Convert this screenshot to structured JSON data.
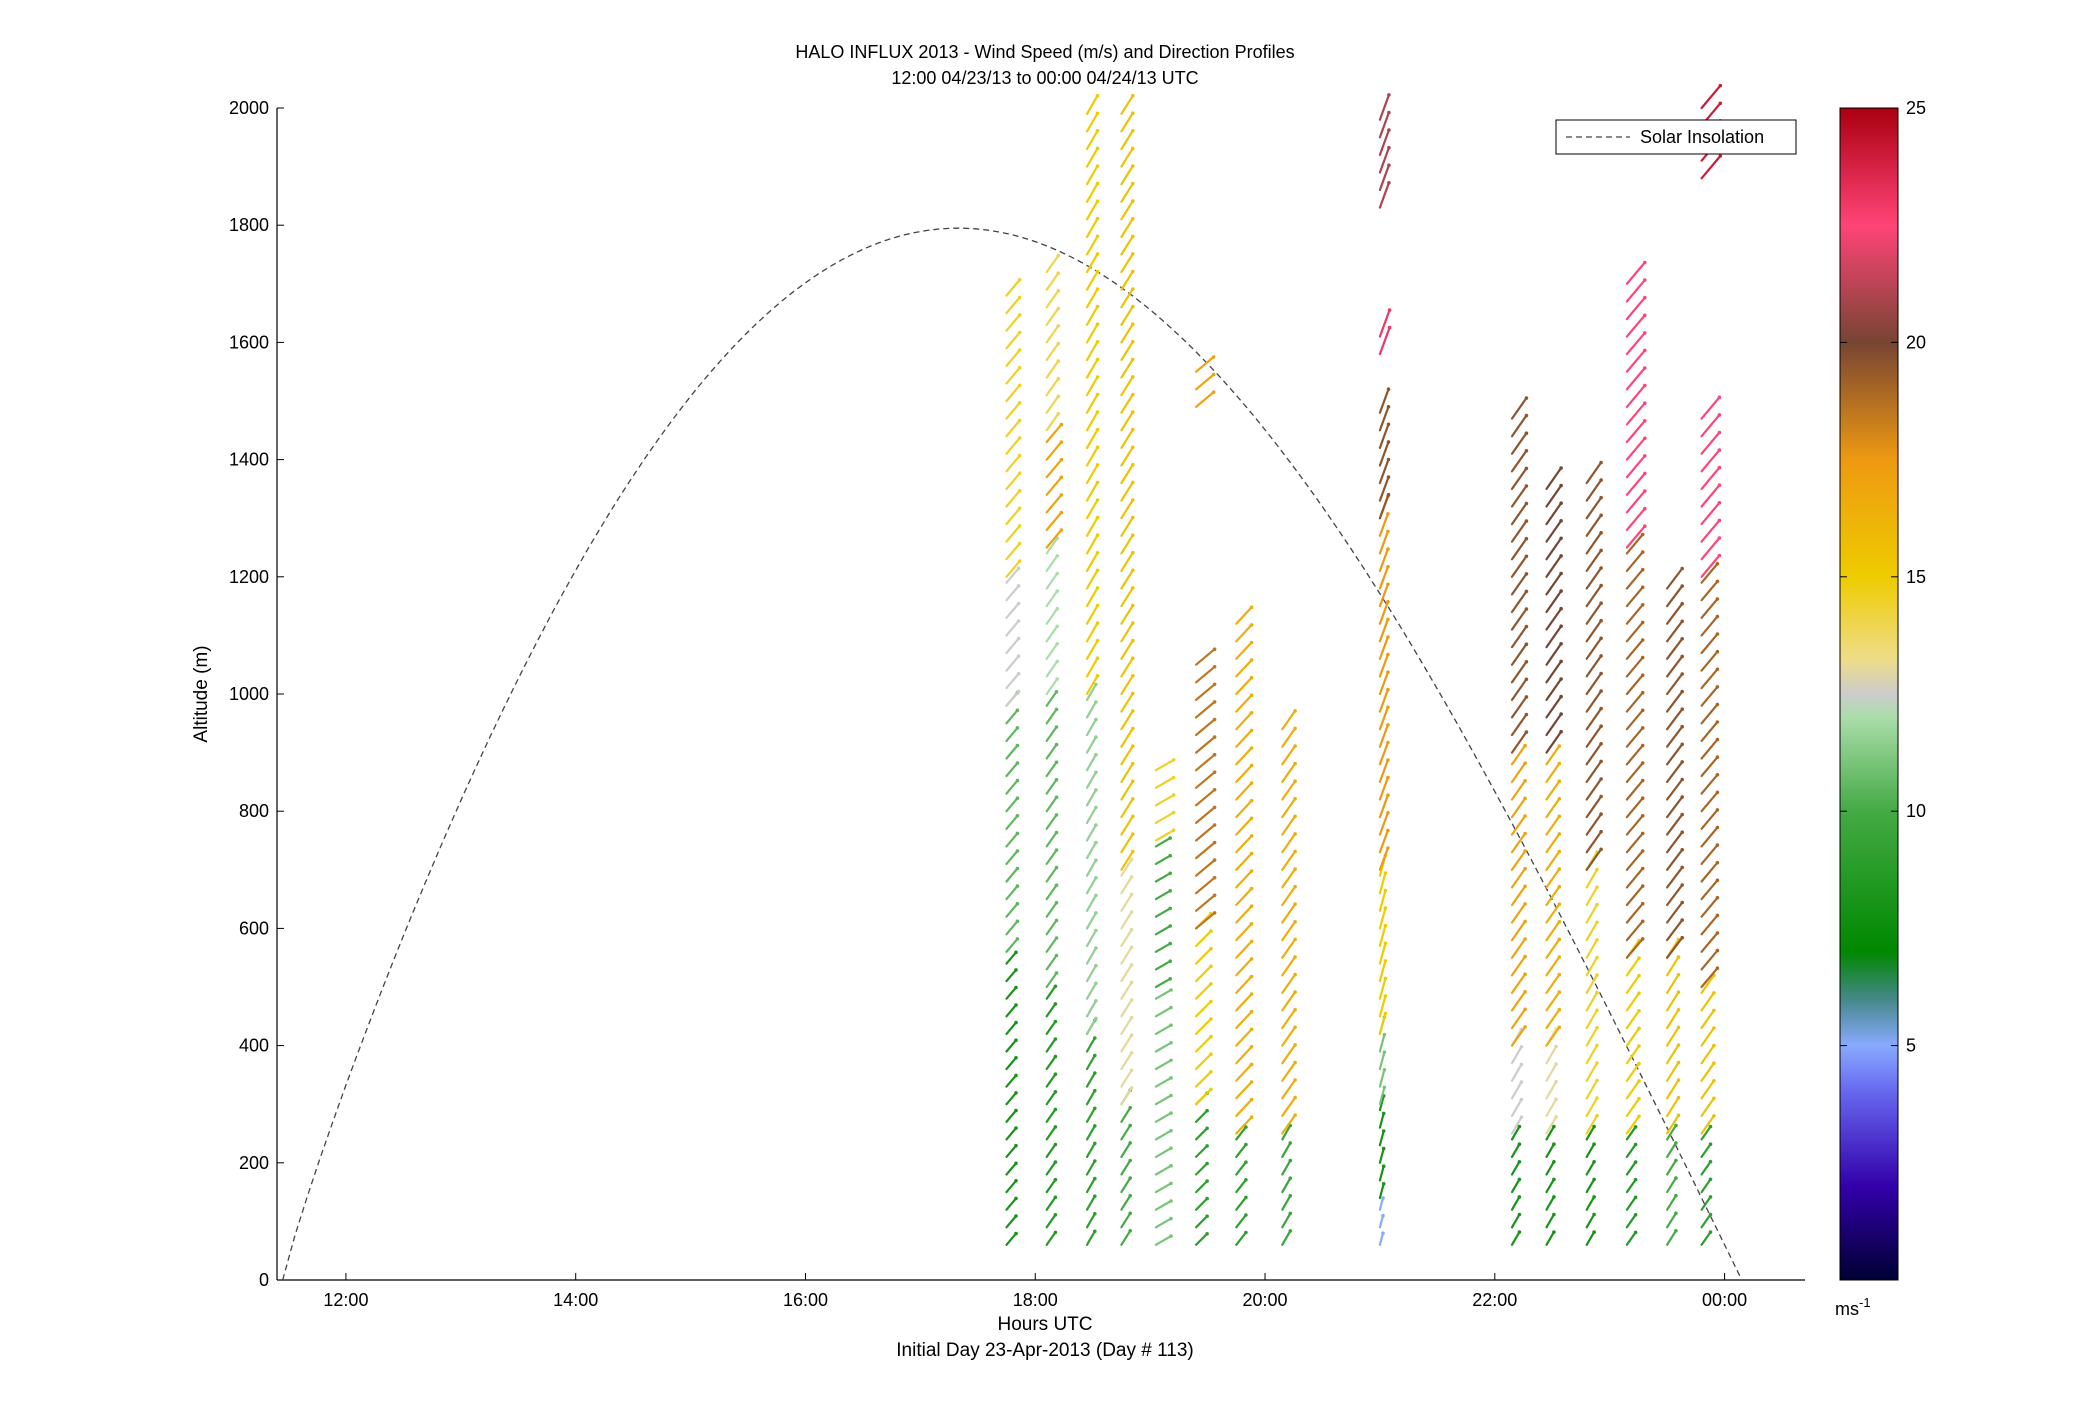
{
  "chart_data": {
    "type": "quiver",
    "title": "HALO INFLUX 2013 - Wind Speed (m/s) and Direction Profiles",
    "subtitle": "12:00 04/23/13 to 00:00 04/24/13  UTC",
    "xlabel": "Hours UTC",
    "xlabel2": "Initial Day 23-Apr-2013 (Day # 113)",
    "ylabel": "Altitude (m)",
    "x_ticks": [
      "12:00",
      "14:00",
      "16:00",
      "18:00",
      "20:00",
      "22:00",
      "00:00"
    ],
    "x_tick_hours": [
      12,
      14,
      16,
      18,
      20,
      22,
      24
    ],
    "xlim": [
      11.4,
      24.7
    ],
    "y_ticks": [
      "0",
      "200",
      "400",
      "600",
      "800",
      "1000",
      "1200",
      "1400",
      "1600",
      "1800",
      "2000"
    ],
    "ylim": [
      0,
      2000
    ],
    "colorbar": {
      "ticks": [
        "5",
        "10",
        "15",
        "20",
        "25"
      ],
      "tick_values": [
        5,
        10,
        15,
        20,
        25
      ],
      "range": [
        0,
        25
      ],
      "unit_label": "ms",
      "unit_exponent": "-1"
    },
    "legend": {
      "entries": [
        "Solar Insolation"
      ],
      "position": "top-right"
    },
    "solar_insolation": {
      "peak_hour": 17.8,
      "peak_altitude": 1795,
      "zero_start_hour": 11.45,
      "zero_end_hour": 24.15
    },
    "profiles": [
      {
        "hour": 17.75,
        "alt_min": 60,
        "alt_max": 1700,
        "segments": [
          [
            60,
            560,
            8
          ],
          [
            560,
            980,
            10.5
          ],
          [
            980,
            1200,
            12.5
          ],
          [
            1200,
            1700,
            14.5
          ]
        ],
        "dir": 40
      },
      {
        "hour": 18.1,
        "alt_min": 60,
        "alt_max": 1720,
        "segments": [
          [
            60,
            500,
            8.5
          ],
          [
            500,
            1000,
            10.5
          ],
          [
            1000,
            1250,
            12
          ],
          [
            1250,
            1450,
            17
          ],
          [
            1450,
            1720,
            14
          ]
        ],
        "dir": 35
      },
      {
        "hour": 18.45,
        "alt_min": 60,
        "alt_max": 2000,
        "segments": [
          [
            60,
            420,
            9
          ],
          [
            420,
            1000,
            11.5
          ],
          [
            1000,
            2000,
            15
          ]
        ],
        "dir": 30
      },
      {
        "hour": 18.75,
        "alt_min": 60,
        "alt_max": 2000,
        "segments": [
          [
            60,
            300,
            10
          ],
          [
            300,
            700,
            13
          ],
          [
            700,
            2000,
            15.5
          ]
        ],
        "dir": 32
      },
      {
        "hour": 19.05,
        "alt_min": 60,
        "alt_max": 880,
        "segments": [
          [
            60,
            500,
            11
          ],
          [
            500,
            750,
            10
          ],
          [
            750,
            880,
            14.5
          ]
        ],
        "dir": 60
      },
      {
        "hour": 19.4,
        "alt_min": 60,
        "alt_max": 1570,
        "segments": [
          [
            60,
            300,
            9
          ],
          [
            300,
            600,
            15
          ],
          [
            600,
            1050,
            18.5
          ],
          [
            1490,
            1570,
            17
          ]
        ],
        "dir": 45
      },
      {
        "hour": 19.75,
        "alt_min": 60,
        "alt_max": 1130,
        "segments": [
          [
            60,
            250,
            9
          ],
          [
            250,
            1130,
            16.5
          ]
        ],
        "dir": 38
      },
      {
        "hour": 20.15,
        "alt_min": 60,
        "alt_max": 950,
        "segments": [
          [
            60,
            250,
            9.5
          ],
          [
            250,
            950,
            16.5
          ]
        ],
        "dir": 30
      },
      {
        "hour": 21.0,
        "alt_min": 60,
        "alt_max": 2000,
        "segments": [
          [
            60,
            140,
            5
          ],
          [
            140,
            300,
            8
          ],
          [
            300,
            420,
            11
          ],
          [
            420,
            700,
            15
          ],
          [
            700,
            1300,
            17.5
          ],
          [
            1300,
            1500,
            19.5
          ],
          [
            1580,
            1630,
            23
          ],
          [
            1830,
            2000,
            21
          ]
        ],
        "dir": 15
      },
      {
        "hour": 22.15,
        "alt_min": 60,
        "alt_max": 1490,
        "segments": [
          [
            60,
            250,
            8
          ],
          [
            250,
            400,
            12.5
          ],
          [
            400,
            900,
            17
          ],
          [
            900,
            1490,
            19.5
          ]
        ],
        "dir": 30
      },
      {
        "hour": 22.45,
        "alt_min": 60,
        "alt_max": 1360,
        "segments": [
          [
            60,
            250,
            8
          ],
          [
            250,
            400,
            13
          ],
          [
            400,
            900,
            16.5
          ],
          [
            900,
            1360,
            20
          ]
        ],
        "dir": 30
      },
      {
        "hour": 22.8,
        "alt_min": 60,
        "alt_max": 1370,
        "segments": [
          [
            60,
            250,
            8
          ],
          [
            250,
            700,
            14.5
          ],
          [
            700,
            1370,
            19.5
          ]
        ],
        "dir": 30
      },
      {
        "hour": 23.15,
        "alt_min": 60,
        "alt_max": 1710,
        "segments": [
          [
            60,
            250,
            8.5
          ],
          [
            250,
            550,
            15
          ],
          [
            550,
            1250,
            19
          ],
          [
            1250,
            1710,
            22.5
          ]
        ],
        "dir": 35
      },
      {
        "hour": 23.5,
        "alt_min": 60,
        "alt_max": 1200,
        "segments": [
          [
            60,
            250,
            10
          ],
          [
            250,
            550,
            15.5
          ],
          [
            550,
            1200,
            19.5
          ]
        ],
        "dir": 32
      },
      {
        "hour": 23.8,
        "alt_min": 60,
        "alt_max": 2000,
        "segments": [
          [
            60,
            250,
            9
          ],
          [
            250,
            500,
            15.5
          ],
          [
            500,
            1200,
            19
          ],
          [
            1200,
            1490,
            22.5
          ],
          [
            1880,
            2000,
            24
          ]
        ],
        "dir": 35
      }
    ]
  }
}
